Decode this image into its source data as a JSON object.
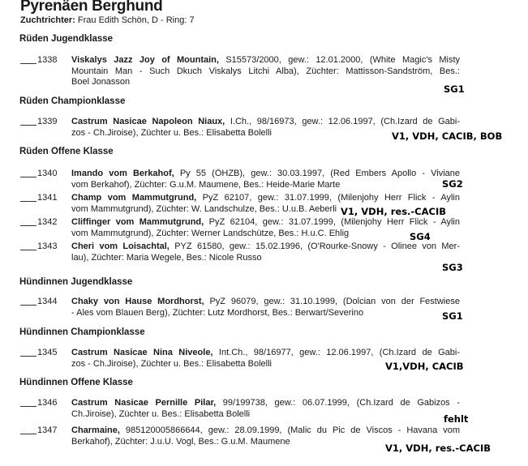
{
  "title": "Pyrenäen Berghund",
  "judge": {
    "label": "Zuchtrichter:",
    "value": "Frau Edith Schön, D - Ring: 7"
  },
  "classes": [
    {
      "heading": "Rüden Jugendklasse",
      "entries": [
        {
          "number": "1338",
          "name": "Viskalys Jazz Joy of Mountain,",
          "line1": " S15573/2000, gew.: 12.01.2000, (White Magic's Misty",
          "line2": "Mountain Man - Such Dkuch Viskalys Litchi Alba), Züchter: Mattisson-Sandström, Bes.:",
          "line3": "Boel Jonasson",
          "result": "SG1"
        }
      ]
    },
    {
      "heading": "Rüden Championklasse",
      "entries": [
        {
          "number": "1339",
          "name": "Castrum Nasicae Napoleon Niaux,",
          "line1": " I.Ch., 98/16973, gew.: 12.06.1997, (Ch.Izard de Gabi-",
          "line2": "zos - Ch.Jiroise), Züchter u. Bes.: Elisabetta Bolelli",
          "result": "V1, VDH, CACIB, BOB"
        }
      ]
    },
    {
      "heading": "Rüden Offene Klasse",
      "entries": [
        {
          "number": "1340",
          "name": "Imando vom Berkahof,",
          "line1": " Py 55 (ÖHZB), gew.: 30.03.1997, (Red Embers Apollo - Viviane",
          "line2": "vom Berkahof), Züchter: G.u.M. Maumene, Bes.: Heide-Marie Marte",
          "result": "SG2"
        },
        {
          "number": "1341",
          "name": "Champ vom Mammutgrund,",
          "line1": " PyZ 62107, gew.: 31.07.1999, (Milenjohy Herr Flick - Aylin",
          "line2": "vom Mammutgrund), Züchter: W. Landschulze, Bes.: U.u.B. Aeberli",
          "result": "V1, VDH, res.-CACIB"
        },
        {
          "number": "1342",
          "name": "Cliffinger vom Mammutgrund,",
          "line1": " PyZ 62104, gew.: 31.07.1999, (Milenjohy Herr Flick - Aylin",
          "line2": "vom Mammutgrund), Züchter: Werner Landschütze, Bes.: H.u.C. Ehlig",
          "result": "SG4"
        },
        {
          "number": "1343",
          "name": "Cheri vom Loisachtal,",
          "line1": " PYZ 61580, gew.: 15.02.1996, (O'Rourke-Snowy - Olinee von Mer-",
          "line2": "lau), Züchter: Maria Wegele, Bes.: Nicole Russo",
          "result": "SG3"
        }
      ]
    },
    {
      "heading": "Hündinnen Jugendklasse",
      "entries": [
        {
          "number": "1344",
          "name": "Chaky von Hause Mordhorst,",
          "line1": " PyZ 96079, gew.: 31.10.1999, (Dolcian von der Festwiese",
          "line2": "- Ales vom Blauen Berg), Züchter: Lutz Mordhorst, Bes.: Berwart/Severino",
          "result": "SG1"
        }
      ]
    },
    {
      "heading": "Hündinnen Championklasse",
      "entries": [
        {
          "number": "1345",
          "name": "Castrum Nasicae Nina Niveole,",
          "line1": " Int.Ch., 98/16977, gew.: 12.06.1997, (Ch.Izard de Gabi-",
          "line2": "zos - Ch.Jiroise), Züchter u. Bes.: Elisabetta Bolelli",
          "result": "V1,VDH, CACIB"
        }
      ]
    },
    {
      "heading": "Hündinnen Offene Klasse",
      "entries": [
        {
          "number": "1346",
          "name": "Castrum Nasicae Pernille Pilar,",
          "line1": " 99/199738, gew.: 06.07.1999, (Ch.Izard de Gabizos -",
          "line2": "Ch.Jiroise), Züchter u. Bes.: Elisabetta Bolelli",
          "result": "fehlt"
        },
        {
          "number": "1347",
          "name": "Charmaine,",
          "line1": " 985120005866644, gew.: 28.09.1999, (Malic du Pic de Viscos - Havana vom",
          "line2": "Berkahof), Züchter: J.u.U. Vogl, Bes.: G.u.M. Maumene",
          "result": "V1, VDH, res.-CACIB"
        }
      ]
    }
  ]
}
